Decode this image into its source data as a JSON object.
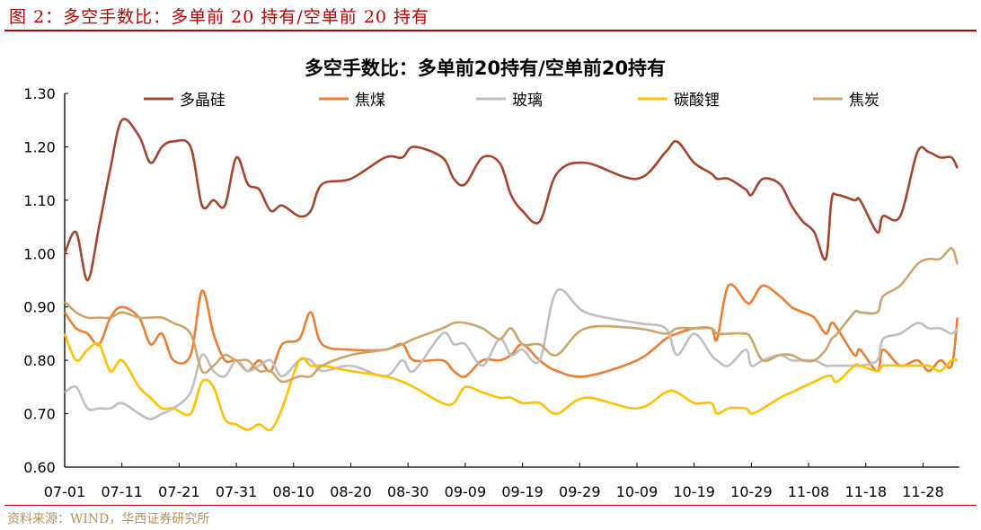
{
  "figure_title": "图 2：多空手数比：多单前 20 持有/空单前 20 持有",
  "source": "资料来源：WIND，华西证券研究所",
  "chart_data": {
    "type": "line",
    "title": "多空手数比：多单前20持有/空单前20持有",
    "xlabel": "",
    "ylabel": "",
    "ylim": [
      0.6,
      1.3
    ],
    "yticks": [
      "0.60",
      "0.70",
      "0.80",
      "0.90",
      "1.00",
      "1.10",
      "1.20",
      "1.30"
    ],
    "xticks": [
      "07-01",
      "07-11",
      "07-21",
      "07-31",
      "08-10",
      "08-20",
      "08-30",
      "09-09",
      "09-19",
      "09-29",
      "10-09",
      "10-19",
      "10-29",
      "11-08",
      "11-18",
      "11-28"
    ],
    "grid": false,
    "legend_placement": "top",
    "x": [
      "07-01",
      "07-03",
      "07-05",
      "07-07",
      "07-09",
      "07-11",
      "07-14",
      "07-16",
      "07-18",
      "07-20",
      "07-23",
      "07-25",
      "07-27",
      "07-29",
      "07-31",
      "08-02",
      "08-04",
      "08-06",
      "08-08",
      "08-11",
      "08-13",
      "08-15",
      "08-20",
      "08-26",
      "08-29",
      "08-31",
      "09-05",
      "09-07",
      "09-09",
      "09-12",
      "09-15",
      "09-17",
      "09-19",
      "09-22",
      "09-25",
      "09-30",
      "10-09",
      "10-14",
      "10-16",
      "10-19",
      "10-22",
      "10-23",
      "10-25",
      "10-28",
      "10-29",
      "10-31",
      "11-03",
      "11-05",
      "11-07",
      "11-09",
      "11-11",
      "11-12",
      "11-13",
      "11-16",
      "11-17",
      "11-20",
      "11-21",
      "11-24",
      "11-27",
      "11-29",
      "12-01",
      "12-03",
      "12-04"
    ],
    "series": [
      {
        "name": "多晶硅",
        "color": "#A5452F",
        "values": [
          1.0,
          1.04,
          0.95,
          1.05,
          1.16,
          1.25,
          1.22,
          1.17,
          1.2,
          1.21,
          1.2,
          1.09,
          1.1,
          1.09,
          1.18,
          1.13,
          1.12,
          1.08,
          1.09,
          1.07,
          1.08,
          1.13,
          1.14,
          1.18,
          1.18,
          1.2,
          1.18,
          1.14,
          1.13,
          1.18,
          1.17,
          1.11,
          1.08,
          1.06,
          1.15,
          1.17,
          1.14,
          1.19,
          1.21,
          1.17,
          1.15,
          1.14,
          1.14,
          1.12,
          1.11,
          1.14,
          1.13,
          1.09,
          1.06,
          1.04,
          0.99,
          1.1,
          1.11,
          1.1,
          1.1,
          1.04,
          1.07,
          1.07,
          1.19,
          1.19,
          1.18,
          1.18,
          1.16
        ]
      },
      {
        "name": "焦煤",
        "color": "#ED7D31",
        "values": [
          0.89,
          0.86,
          0.85,
          0.83,
          0.88,
          0.9,
          0.88,
          0.83,
          0.85,
          0.8,
          0.81,
          0.93,
          0.85,
          0.8,
          0.8,
          0.78,
          0.8,
          0.78,
          0.83,
          0.84,
          0.89,
          0.83,
          0.82,
          0.82,
          0.83,
          0.8,
          0.8,
          0.78,
          0.77,
          0.8,
          0.8,
          0.81,
          0.83,
          0.8,
          0.78,
          0.77,
          0.8,
          0.84,
          0.85,
          0.86,
          0.86,
          0.84,
          0.94,
          0.91,
          0.91,
          0.94,
          0.92,
          0.9,
          0.89,
          0.88,
          0.85,
          0.87,
          0.86,
          0.81,
          0.82,
          0.78,
          0.82,
          0.79,
          0.8,
          0.78,
          0.8,
          0.79,
          0.88
        ]
      },
      {
        "name": "玻璃",
        "color": "#BFBFBF",
        "values": [
          0.74,
          0.75,
          0.71,
          0.71,
          0.71,
          0.72,
          0.7,
          0.69,
          0.7,
          0.71,
          0.74,
          0.81,
          0.78,
          0.77,
          0.8,
          0.78,
          0.79,
          0.8,
          0.77,
          0.8,
          0.8,
          0.78,
          0.79,
          0.77,
          0.8,
          0.78,
          0.85,
          0.83,
          0.83,
          0.79,
          0.84,
          0.81,
          0.82,
          0.8,
          0.93,
          0.89,
          0.87,
          0.86,
          0.81,
          0.85,
          0.81,
          0.8,
          0.79,
          0.82,
          0.79,
          0.8,
          0.81,
          0.8,
          0.8,
          0.8,
          0.79,
          0.79,
          0.79,
          0.79,
          0.79,
          0.8,
          0.84,
          0.85,
          0.87,
          0.86,
          0.86,
          0.85,
          0.86
        ]
      },
      {
        "name": "碳酸锂",
        "color": "#FFC000",
        "values": [
          0.85,
          0.8,
          0.82,
          0.83,
          0.78,
          0.8,
          0.75,
          0.73,
          0.71,
          0.71,
          0.7,
          0.76,
          0.75,
          0.69,
          0.68,
          0.67,
          0.68,
          0.67,
          0.71,
          0.8,
          0.79,
          0.79,
          0.78,
          0.77,
          0.76,
          0.75,
          0.72,
          0.72,
          0.75,
          0.74,
          0.73,
          0.73,
          0.72,
          0.72,
          0.7,
          0.73,
          0.71,
          0.74,
          0.74,
          0.72,
          0.72,
          0.7,
          0.71,
          0.71,
          0.7,
          0.71,
          0.73,
          0.74,
          0.75,
          0.76,
          0.77,
          0.77,
          0.76,
          0.79,
          0.79,
          0.78,
          0.79,
          0.79,
          0.79,
          0.79,
          0.78,
          0.8,
          0.8
        ]
      },
      {
        "name": "焦炭",
        "color": "#C9A66B",
        "values": [
          0.91,
          0.89,
          0.88,
          0.88,
          0.88,
          0.89,
          0.88,
          0.88,
          0.88,
          0.87,
          0.85,
          0.78,
          0.79,
          0.81,
          0.8,
          0.8,
          0.78,
          0.78,
          0.76,
          0.77,
          0.77,
          0.79,
          0.81,
          0.82,
          0.83,
          0.84,
          0.86,
          0.87,
          0.87,
          0.86,
          0.84,
          0.86,
          0.83,
          0.83,
          0.81,
          0.86,
          0.86,
          0.85,
          0.86,
          0.86,
          0.86,
          0.85,
          0.85,
          0.85,
          0.84,
          0.8,
          0.81,
          0.81,
          0.8,
          0.8,
          0.82,
          0.84,
          0.85,
          0.89,
          0.89,
          0.89,
          0.92,
          0.94,
          0.98,
          0.99,
          0.99,
          1.01,
          0.98
        ]
      }
    ]
  }
}
